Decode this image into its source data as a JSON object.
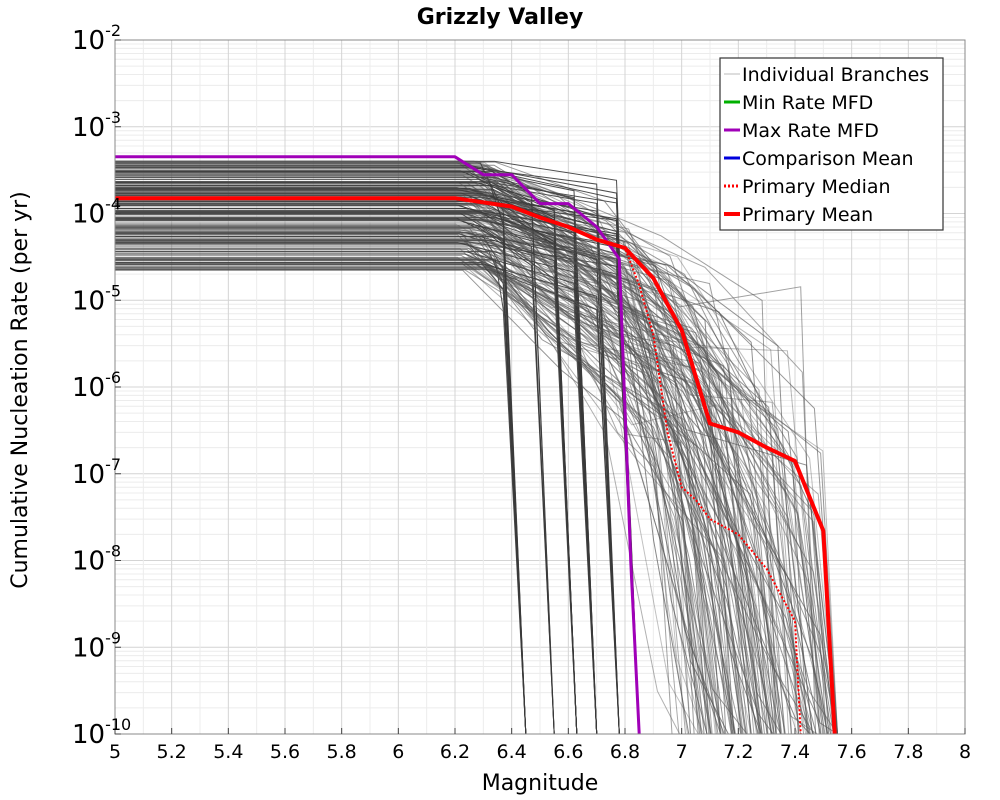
{
  "chart_data": {
    "type": "line",
    "title": "Grizzly Valley",
    "xlabel": "Magnitude",
    "ylabel": "Cumulative Nucleation Rate (per yr)",
    "x_range": [
      5,
      8
    ],
    "y_range_log10": [
      -10,
      -2
    ],
    "y_scale": "log",
    "grid": true,
    "legend_position": "top-right",
    "x_ticks": [
      "5",
      "5.2",
      "5.4",
      "5.6",
      "5.8",
      "6",
      "6.2",
      "6.4",
      "6.6",
      "6.8",
      "7",
      "7.2",
      "7.4",
      "7.6",
      "7.8",
      "8"
    ],
    "y_ticks": [
      {
        "base": "10",
        "exp": "-2"
      },
      {
        "base": "10",
        "exp": "-3"
      },
      {
        "base": "10",
        "exp": "-4"
      },
      {
        "base": "10",
        "exp": "-5"
      },
      {
        "base": "10",
        "exp": "-6"
      },
      {
        "base": "10",
        "exp": "-7"
      },
      {
        "base": "10",
        "exp": "-8"
      },
      {
        "base": "10",
        "exp": "-9"
      },
      {
        "base": "10",
        "exp": "-10"
      }
    ],
    "legend": [
      {
        "label": "Individual Branches",
        "color": "#bbbbbb",
        "style": "solid"
      },
      {
        "label": "Min Rate MFD",
        "color": "#00b000",
        "style": "solid"
      },
      {
        "label": "Max Rate MFD",
        "color": "#a000b8",
        "style": "solid"
      },
      {
        "label": "Comparison Mean",
        "color": "#0000dd",
        "style": "solid"
      },
      {
        "label": " Primary Median",
        "color": "#ff0000",
        "style": "dotted"
      },
      {
        "label": "Primary Mean",
        "color": "#ff0000",
        "style": "solid"
      }
    ],
    "branches": {
      "color": "#555555",
      "count": 220,
      "plateau_range": [
        2.2e-05,
        0.00042
      ],
      "cutoff_mags": [
        6.45,
        6.55,
        6.63,
        6.7,
        6.78,
        6.85,
        6.95,
        7.05,
        7.15,
        7.25,
        7.35,
        7.42,
        7.5
      ]
    },
    "series": [
      {
        "name": "Max Rate MFD",
        "color": "#a000b8",
        "x": [
          5.0,
          6.2,
          6.3,
          6.4,
          6.5,
          6.6,
          6.7,
          6.78,
          6.82,
          6.85
        ],
        "y": [
          0.00045,
          0.00045,
          0.00028,
          0.00028,
          0.00013,
          0.00013,
          7e-05,
          3e-05,
          1e-08,
          1e-10
        ]
      },
      {
        "name": "Primary Median",
        "color": "#ff0000",
        "x": [
          5.0,
          6.2,
          6.4,
          6.5,
          6.6,
          6.7,
          6.8,
          6.85,
          6.9,
          6.95,
          7.0,
          7.05,
          7.1,
          7.2,
          7.3,
          7.4,
          7.42
        ],
        "y": [
          0.00015,
          0.00015,
          0.00012,
          9e-05,
          7e-05,
          5e-05,
          4e-05,
          1.5e-05,
          4e-06,
          3e-07,
          7e-08,
          5e-08,
          3e-08,
          2e-08,
          8e-09,
          2e-09,
          1e-10
        ]
      },
      {
        "name": "Primary Mean",
        "color": "#ff0000",
        "x": [
          5.0,
          6.2,
          6.4,
          6.5,
          6.6,
          6.7,
          6.8,
          6.9,
          7.0,
          7.1,
          7.2,
          7.3,
          7.4,
          7.5,
          7.54
        ],
        "y": [
          0.00015,
          0.00015,
          0.00012,
          9e-05,
          7e-05,
          5e-05,
          4e-05,
          1.8e-05,
          4.5e-06,
          3.8e-07,
          3e-07,
          2e-07,
          1.4e-07,
          2.2e-08,
          1e-10
        ]
      }
    ]
  }
}
